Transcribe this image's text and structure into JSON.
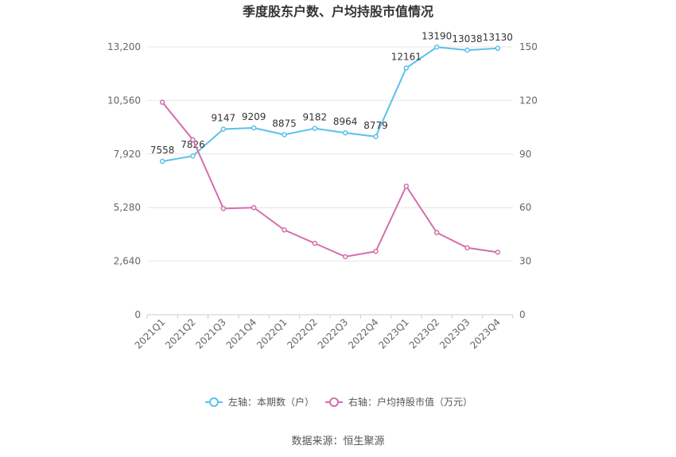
{
  "chart_data": {
    "type": "line",
    "title": "季度股东户数、户均持股市值情况",
    "categories": [
      "2021Q1",
      "2021Q2",
      "2021Q3",
      "2021Q4",
      "2022Q1",
      "2022Q2",
      "2022Q3",
      "2022Q4",
      "2023Q1",
      "2023Q2",
      "2023Q3",
      "2023Q4"
    ],
    "left_axis": {
      "ticks": [
        "0",
        "2,640",
        "5,280",
        "7,920",
        "10,560",
        "13,200"
      ],
      "ylim": [
        0,
        13200
      ]
    },
    "right_axis": {
      "ticks": [
        "0",
        "30",
        "60",
        "90",
        "120",
        "150"
      ],
      "ylim": [
        0,
        150
      ]
    },
    "grid": true,
    "legend_position": "bottom",
    "series": [
      {
        "name": "左轴：本期数（户）",
        "axis": "left",
        "color": "#5bc0eb",
        "values": [
          7558,
          7826,
          9147,
          9209,
          8875,
          9182,
          8964,
          8779,
          12161,
          13190,
          13038,
          13130
        ],
        "labels": [
          "7558",
          "7826",
          "9147",
          "9209",
          "8875",
          "9182",
          "8964",
          "8779",
          "12161",
          "13190",
          "13038",
          "13130"
        ]
      },
      {
        "name": "右轴：户均持股市值（万元）",
        "axis": "right",
        "color": "#d46eac",
        "values": [
          119,
          98,
          59.5,
          60,
          47.5,
          40,
          32.5,
          35.5,
          72,
          46,
          37.5,
          35
        ]
      }
    ]
  },
  "source": "数据来源：恒生聚源"
}
